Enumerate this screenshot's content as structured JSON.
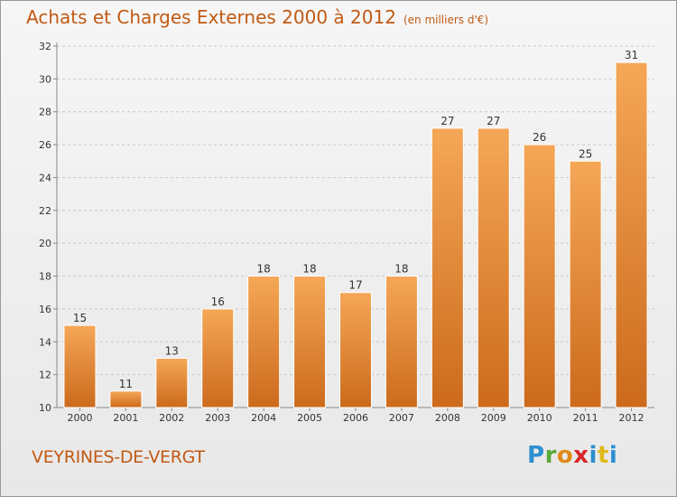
{
  "title": {
    "main": "Achats et Charges Externes 2000 à 2012",
    "unit": "(en milliers d'€)"
  },
  "location": "VEYRINES-DE-VERGT",
  "brand": {
    "letters": [
      "P",
      "r",
      "o",
      "x",
      "i",
      "t",
      "i"
    ],
    "colors": [
      "#2c8fd0",
      "#5aa83a",
      "#e08a18",
      "#d8262a",
      "#2c8fd0",
      "#e0b818",
      "#2c8fd0"
    ]
  },
  "colors": {
    "bar_top": "#f5a757",
    "bar_bottom": "#cc6a1c",
    "title": "#c25a14"
  },
  "chart_data": {
    "type": "bar",
    "title": "Achats et Charges Externes 2000 à 2012",
    "subtitle": "(en milliers d'€)",
    "xlabel": "",
    "ylabel": "",
    "categories": [
      "2000",
      "2001",
      "2002",
      "2003",
      "2004",
      "2005",
      "2006",
      "2007",
      "2008",
      "2009",
      "2010",
      "2011",
      "2012"
    ],
    "values": [
      15,
      11,
      13,
      16,
      18,
      18,
      17,
      18,
      27,
      27,
      26,
      25,
      31
    ],
    "data_labels": [
      "15",
      "11",
      "13",
      "16",
      "18",
      "18",
      "17",
      "18",
      "27",
      "27",
      "26",
      "25",
      "31"
    ],
    "ylim": [
      10,
      32
    ],
    "yticks": [
      "10",
      "12",
      "14",
      "16",
      "18",
      "20",
      "22",
      "24",
      "26",
      "28",
      "30",
      "32"
    ],
    "grid": true,
    "legend": "none"
  }
}
